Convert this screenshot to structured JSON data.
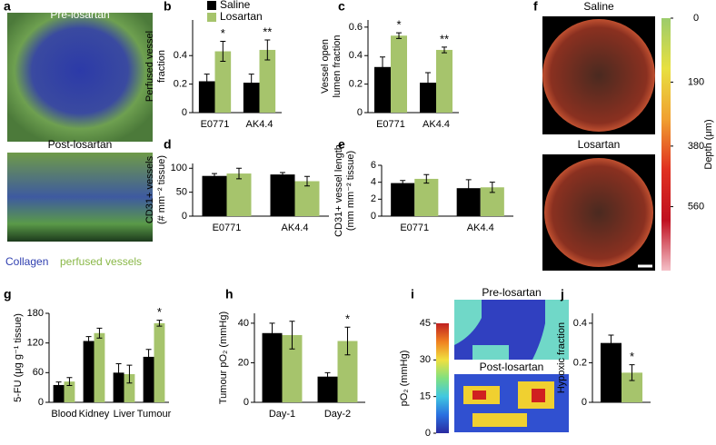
{
  "chart_data": [
    {
      "type": "bar",
      "label": "b",
      "ylabel": [
        "Perfused vessel",
        "fraction"
      ],
      "categories": [
        "E0771",
        "AK4.4"
      ],
      "series": [
        {
          "name": "Saline",
          "color": "#000000",
          "values": [
            0.22,
            0.21
          ],
          "errors": [
            0.05,
            0.06
          ]
        },
        {
          "name": "Losartan",
          "color": "#a6c46c",
          "values": [
            0.43,
            0.44
          ],
          "errors": [
            0.07,
            0.07
          ],
          "significance": [
            "*",
            "**"
          ]
        }
      ],
      "ylim": [
        0,
        0.65
      ],
      "yticks": [
        0,
        0.2,
        0.4
      ],
      "legend": true
    },
    {
      "type": "bar",
      "label": "c",
      "ylabel": [
        "Vessel open",
        "lumen fraction"
      ],
      "categories": [
        "E0771",
        "AK4.4"
      ],
      "series": [
        {
          "color": "#000000",
          "values": [
            0.32,
            0.21
          ],
          "errors": [
            0.07,
            0.07
          ]
        },
        {
          "color": "#a6c46c",
          "values": [
            0.54,
            0.44
          ],
          "errors": [
            0.02,
            0.02
          ],
          "significance": [
            "*",
            "**"
          ]
        }
      ],
      "ylim": [
        0,
        0.65
      ],
      "yticks": [
        0,
        0.2,
        0.4,
        0.6
      ]
    },
    {
      "type": "bar",
      "label": "d",
      "ylabel": [
        "CD31+ vessels",
        "(# mm⁻² tissue)"
      ],
      "categories": [
        "E0771",
        "AK4.4"
      ],
      "series": [
        {
          "color": "#000000",
          "values": [
            84,
            87
          ],
          "errors": [
            5,
            4
          ]
        },
        {
          "color": "#a6c46c",
          "values": [
            89,
            73
          ],
          "errors": [
            11,
            10
          ]
        }
      ],
      "ylim": [
        0,
        110
      ],
      "yticks": [
        0,
        50,
        100
      ]
    },
    {
      "type": "bar",
      "label": "e",
      "ylabel": [
        "CD31+ vessel length",
        "(mm mm⁻² tissue)"
      ],
      "categories": [
        "E0771",
        "AK4.4"
      ],
      "series": [
        {
          "color": "#000000",
          "values": [
            3.9,
            3.3
          ],
          "errors": [
            0.3,
            1.0
          ]
        },
        {
          "color": "#a6c46c",
          "values": [
            4.4,
            3.4
          ],
          "errors": [
            0.5,
            0.6
          ]
        }
      ],
      "ylim": [
        0,
        6
      ],
      "yticks": [
        0,
        2,
        4,
        6
      ]
    },
    {
      "type": "bar",
      "label": "g",
      "ylabel": [
        "5-FU (μg g⁻¹ tissue)"
      ],
      "categories": [
        "Blood",
        "Kidney",
        "Liver",
        "Tumour"
      ],
      "series": [
        {
          "color": "#000000",
          "values": [
            35,
            124,
            60,
            92
          ],
          "errors": [
            6,
            9,
            18,
            15
          ]
        },
        {
          "color": "#a6c46c",
          "values": [
            42,
            140,
            57,
            160
          ],
          "errors": [
            8,
            10,
            18,
            6
          ],
          "significance": [
            null,
            null,
            null,
            "*"
          ]
        }
      ],
      "ylim": [
        0,
        180
      ],
      "yticks": [
        0,
        60,
        120,
        180
      ]
    },
    {
      "type": "bar",
      "label": "h",
      "ylabel": [
        "Tumour pO₂ (mmHg)"
      ],
      "categories": [
        "Day-1",
        "Day-2"
      ],
      "series": [
        {
          "color": "#000000",
          "values": [
            35,
            13
          ],
          "errors": [
            5,
            2
          ]
        },
        {
          "color": "#a6c46c",
          "values": [
            34,
            31
          ],
          "errors": [
            7,
            7
          ],
          "significance": [
            null,
            "*"
          ]
        }
      ],
      "ylim": [
        0,
        45
      ],
      "yticks": [
        0,
        20,
        40
      ]
    },
    {
      "type": "bar",
      "label": "j",
      "ylabel": [
        "Hypoxic fraction"
      ],
      "categories": [
        null
      ],
      "series": [
        {
          "color": "#000000",
          "values": [
            0.3
          ],
          "errors": [
            0.04
          ]
        },
        {
          "color": "#a6c46c",
          "values": [
            0.15
          ],
          "errors": [
            0.04
          ],
          "significance": [
            "*"
          ]
        }
      ],
      "ylim": [
        0,
        0.45
      ],
      "yticks": [
        0,
        0.2,
        0.4
      ]
    },
    {
      "type": "colorbar",
      "ylabel": "Depth (μm)",
      "ylim": [
        0,
        750
      ],
      "yticks": [
        0,
        190,
        380,
        560
      ],
      "reversed": true,
      "colormap": [
        "#9ccc6c",
        "#e8e040",
        "#f0a030",
        "#e03020",
        "#c01020",
        "#f4c0c8"
      ]
    },
    {
      "type": "colorbar",
      "ylabel": "pO₂ (mmHg)",
      "ylim": [
        0,
        45
      ],
      "yticks": [
        0,
        15,
        30,
        45
      ],
      "colormap": [
        "#2a2aa0",
        "#2a70e0",
        "#40c8e0",
        "#80e080",
        "#f0e040",
        "#f08020",
        "#c02020"
      ]
    }
  ],
  "images": [
    {
      "label": "a",
      "captions": [
        "Pre-losartan",
        "Post-losartan"
      ],
      "legend": [
        "Collagen",
        "perfused vessels"
      ]
    },
    {
      "label": "f",
      "captions": [
        "Saline",
        "Losartan"
      ]
    },
    {
      "label": "i",
      "captions": [
        "Pre-losartan",
        "Post-losartan"
      ]
    }
  ]
}
